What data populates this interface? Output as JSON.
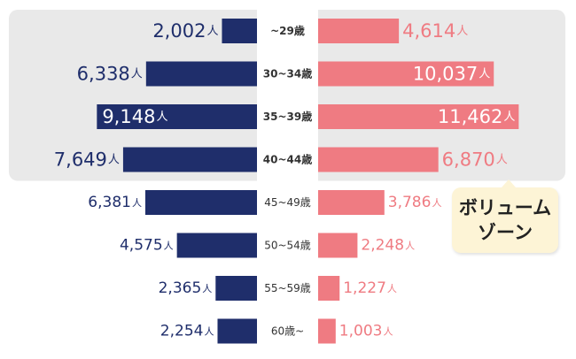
{
  "chart_data": {
    "type": "bar",
    "orientation": "horizontal-butterfly",
    "categories": [
      "~29歳",
      "30~34歳",
      "35~39歳",
      "40~44歳",
      "45~49歳",
      "50~54歳",
      "55~59歳",
      "60歳~"
    ],
    "series": [
      {
        "name": "left",
        "color": "#1f2e6b",
        "values": [
          2002,
          6338,
          9148,
          7649,
          6381,
          4575,
          2365,
          2254
        ]
      },
      {
        "name": "right",
        "color": "#ef7b82",
        "values": [
          4614,
          10037,
          11462,
          6870,
          3786,
          2248,
          1227,
          1003
        ]
      }
    ],
    "unit": "人",
    "highlight_categories": [
      "~29歳",
      "30~34歳",
      "35~39歳",
      "40~44歳"
    ],
    "highlight_color": "#e9e9e9",
    "xlim": [
      0,
      12000
    ]
  },
  "callout": {
    "label": "ボリューム\nゾーン",
    "color": "#fdf4d6"
  }
}
